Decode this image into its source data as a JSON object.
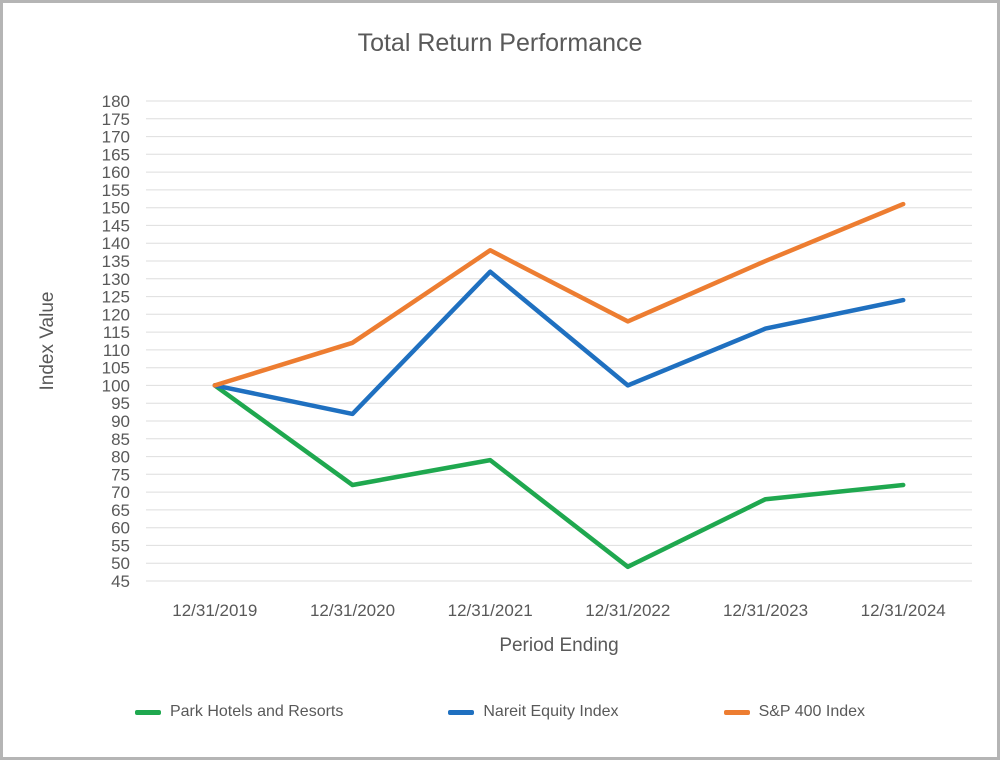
{
  "figure": {
    "border_color": "#b5b5b5",
    "background": "#ffffff"
  },
  "chart_data": {
    "type": "line",
    "title": "Total Return Performance",
    "xlabel": "Period Ending",
    "ylabel": "Index Value",
    "x": [
      "12/31/2019",
      "12/31/2020",
      "12/31/2021",
      "12/31/2022",
      "12/31/2023",
      "12/31/2024"
    ],
    "ylim": [
      45,
      180
    ],
    "ytick_step": 5,
    "grid": "horizontal-only",
    "legend_position": "bottom",
    "colors": {
      "text": "#595959",
      "gridline": "#dedede"
    },
    "series": [
      {
        "name": "Park Hotels and Resorts",
        "color": "#1FA84F",
        "values": [
          100,
          72,
          79,
          49,
          68,
          72
        ]
      },
      {
        "name": "Nareit Equity Index",
        "color": "#1F70C0",
        "values": [
          100,
          92,
          132,
          100,
          116,
          124
        ]
      },
      {
        "name": "S&P 400 Index",
        "color": "#ED7D31",
        "values": [
          100,
          112,
          138,
          118,
          135,
          151
        ]
      }
    ]
  }
}
